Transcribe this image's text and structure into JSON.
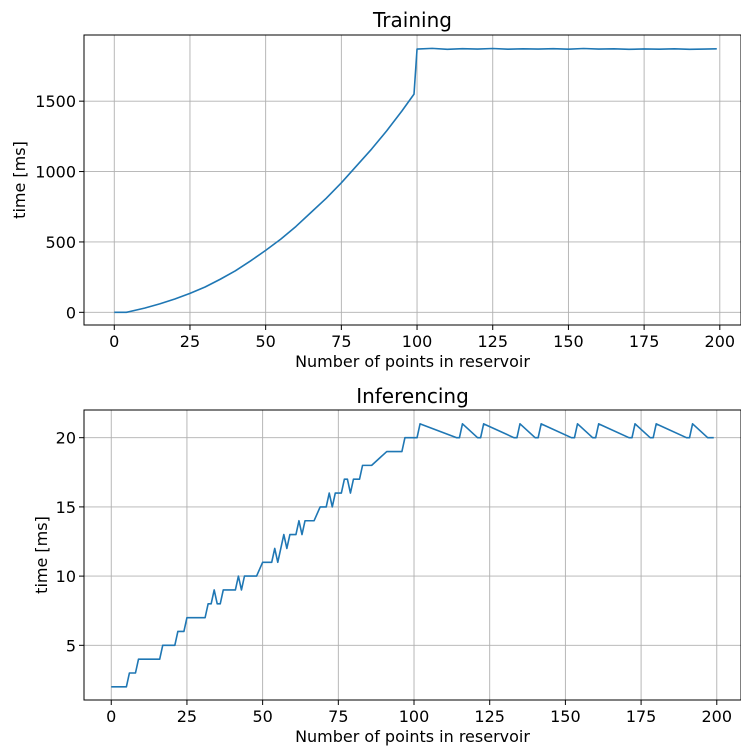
{
  "chart_data": [
    {
      "type": "line",
      "title": "Training",
      "xlabel": "Number of points in reservoir",
      "ylabel": "time [ms]",
      "xlim": [
        -10,
        207
      ],
      "ylim": [
        -90,
        1970
      ],
      "xticks": [
        0,
        25,
        50,
        75,
        100,
        125,
        150,
        175,
        200
      ],
      "yticks": [
        0,
        500,
        1000,
        1500
      ],
      "grid": true,
      "color": "#1f77b4",
      "series": [
        {
          "x": [
            0,
            4,
            10,
            15,
            20,
            25,
            30,
            35,
            40,
            45,
            50,
            55,
            60,
            65,
            70,
            75,
            80,
            85,
            90,
            95,
            99,
            100,
            105,
            110,
            115,
            120,
            125,
            130,
            135,
            140,
            145,
            150,
            155,
            160,
            165,
            170,
            175,
            180,
            185,
            190,
            195,
            199
          ],
          "y": [
            0,
            0,
            30,
            60,
            95,
            135,
            180,
            235,
            295,
            365,
            440,
            520,
            610,
            710,
            810,
            920,
            1040,
            1160,
            1290,
            1430,
            1550,
            1870,
            1875,
            1868,
            1873,
            1870,
            1874,
            1869,
            1872,
            1870,
            1873,
            1869,
            1874,
            1870,
            1872,
            1868,
            1871,
            1869,
            1872,
            1868,
            1870,
            1872
          ]
        }
      ]
    },
    {
      "type": "line",
      "title": "Inferencing",
      "xlabel": "Number of points in reservoir",
      "ylabel": "time [ms]",
      "xlim": [
        -9,
        208
      ],
      "ylim": [
        1.05,
        22.0
      ],
      "xticks": [
        0,
        25,
        50,
        75,
        100,
        125,
        150,
        175,
        200
      ],
      "yticks": [
        5,
        10,
        15,
        20
      ],
      "grid": true,
      "color": "#1f77b4",
      "series": [
        {
          "x": [
            0,
            5,
            6,
            8,
            9,
            11,
            16,
            17,
            21,
            22,
            24,
            25,
            31,
            32,
            33,
            34,
            35,
            36,
            37,
            39,
            41,
            42,
            43,
            44,
            45,
            47,
            48,
            50,
            51,
            53,
            54,
            55,
            56,
            57,
            58,
            59,
            60,
            61,
            62,
            63,
            64,
            65,
            66,
            67,
            69,
            70,
            71,
            72,
            73,
            74,
            75,
            76,
            77,
            78,
            79,
            80,
            81,
            82,
            83,
            84,
            85,
            86,
            91,
            92,
            96,
            97,
            100,
            101,
            102,
            114,
            115,
            116,
            121,
            122,
            123,
            133,
            134,
            135,
            140,
            141,
            142,
            152,
            153,
            154,
            159,
            160,
            161,
            171,
            172,
            173,
            178,
            179,
            180,
            190,
            191,
            192,
            197,
            198,
            199
          ],
          "y": [
            2,
            2,
            3,
            3,
            4,
            4,
            4,
            5,
            5,
            6,
            6,
            7,
            7,
            8,
            8,
            9,
            8,
            8,
            9,
            9,
            9,
            10,
            9,
            10,
            10,
            10,
            10,
            11,
            11,
            11,
            12,
            11,
            12,
            13,
            12,
            13,
            13,
            13,
            14,
            13,
            14,
            14,
            14,
            14,
            15,
            15,
            15,
            16,
            15,
            16,
            16,
            16,
            17,
            17,
            16,
            17,
            17,
            17,
            18,
            18,
            18,
            18,
            19,
            19,
            19,
            20,
            20,
            20,
            21,
            20,
            20,
            21,
            20,
            20,
            21,
            20,
            20,
            21,
            20,
            20,
            21,
            20,
            20,
            21,
            20,
            20,
            21,
            20,
            20,
            21,
            20,
            20,
            21,
            20,
            20,
            21,
            20,
            20,
            20
          ]
        }
      ]
    }
  ]
}
